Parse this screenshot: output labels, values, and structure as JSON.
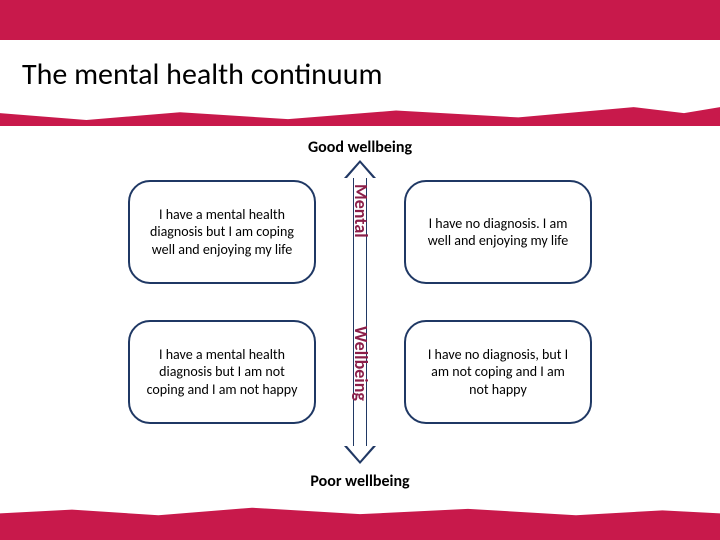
{
  "colors": {
    "brand_band": "#c8194b",
    "quad_border": "#1f3864",
    "arrow_border": "#203864",
    "axis_text": "#8b1f4a",
    "background": "#ffffff",
    "title_color": "#000000",
    "label_color": "#000000",
    "body_text": "#000000"
  },
  "typography": {
    "title_fontsize": 30,
    "label_fontsize": 16,
    "quad_fontsize": 14,
    "axis_fontsize": 18,
    "font_family": "Calibri, Arial, sans-serif"
  },
  "layout": {
    "slide_w": 720,
    "slide_h": 540,
    "quad_w": 188,
    "quad_h": 104,
    "quad_radius": 22,
    "quad_border_w": 2
  },
  "title": "The mental health continuum",
  "axis": {
    "top": "Good  wellbeing",
    "bottom": "Poor wellbeing",
    "upper": "Mental",
    "lower": "Wellbeing"
  },
  "quadrants": {
    "top_left": "I have a mental health diagnosis but I am coping well and enjoying my life",
    "top_right": "I have no diagnosis.\nI am well and enjoying my life",
    "bottom_left": "I have a mental health diagnosis but\nI am not coping  and I am not happy",
    "bottom_right": "I have no diagnosis, but I am not coping and  I am not happy"
  },
  "diagram_type": "quadrant"
}
